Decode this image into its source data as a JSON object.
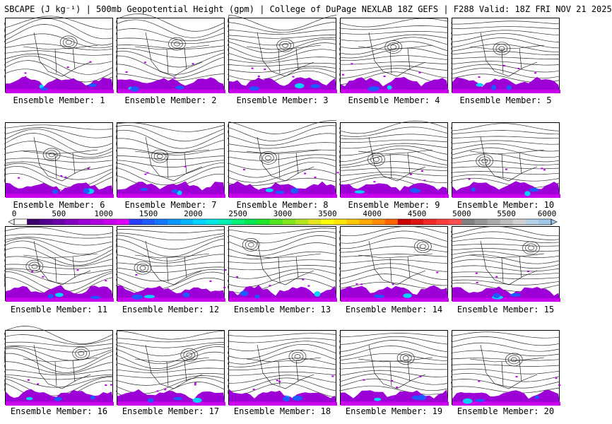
{
  "title": "SBCAPE (J kg⁻¹) | 500mb Geopotential Height (gpm) | College of DuPage NEXLAB 18Z GEFS | F288 Valid: 18Z FRI NOV 21 2025",
  "colorbar": {
    "ticks": [
      "0",
      "500",
      "1000",
      "1500",
      "2000",
      "2500",
      "3000",
      "3500",
      "4000",
      "4500",
      "5000",
      "5500",
      "6000"
    ],
    "tick_values": [
      0,
      500,
      1000,
      1500,
      2000,
      2500,
      3000,
      3500,
      4000,
      4500,
      5000,
      5500,
      6000
    ],
    "range": [
      0,
      6000
    ],
    "colors": [
      "#ffffff",
      "#3a006e",
      "#52008f",
      "#6a00a8",
      "#8300c2",
      "#9c00d6",
      "#b000e0",
      "#c800ec",
      "#e000ff",
      "#2a3cff",
      "#1e5aff",
      "#1478ff",
      "#0a96ff",
      "#00b4ff",
      "#00d2ff",
      "#00e6e6",
      "#00f0b4",
      "#00f078",
      "#00e650",
      "#1ee628",
      "#50e61e",
      "#82e61e",
      "#b4e61e",
      "#e6e61e",
      "#ffff00",
      "#ffe600",
      "#ffc800",
      "#ffaa00",
      "#ff8c00",
      "#ff6400",
      "#c80000",
      "#dc1414",
      "#f02828",
      "#ff3c3c",
      "#ff5050",
      "#808080",
      "#969696",
      "#aaaaaa",
      "#bebebe",
      "#d2d2d2",
      "#b4d2e6",
      "#a0c8e6"
    ]
  },
  "panels": [
    {
      "label": "Ensemble Member: 1"
    },
    {
      "label": "Ensemble Member: 2"
    },
    {
      "label": "Ensemble Member: 3"
    },
    {
      "label": "Ensemble Member: 4"
    },
    {
      "label": "Ensemble Member: 5"
    },
    {
      "label": "Ensemble Member: 6"
    },
    {
      "label": "Ensemble Member: 7"
    },
    {
      "label": "Ensemble Member: 8"
    },
    {
      "label": "Ensemble Member: 9"
    },
    {
      "label": "Ensemble Member: 10"
    },
    {
      "label": "Ensemble Member: 11"
    },
    {
      "label": "Ensemble Member: 12"
    },
    {
      "label": "Ensemble Member: 13"
    },
    {
      "label": "Ensemble Member: 14"
    },
    {
      "label": "Ensemble Member: 15"
    },
    {
      "label": "Ensemble Member: 16"
    },
    {
      "label": "Ensemble Member: 17"
    },
    {
      "label": "Ensemble Member: 18"
    },
    {
      "label": "Ensemble Member: 19"
    },
    {
      "label": "Ensemble Member: 20"
    }
  ]
}
